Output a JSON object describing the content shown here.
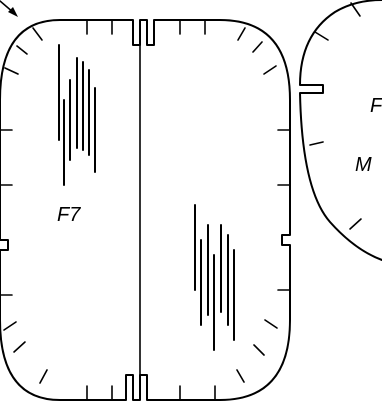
{
  "labels": {
    "part_a": "F7",
    "part_b_top": "F",
    "part_b_bottom": "M"
  },
  "colors": {
    "ink": "#000000",
    "background": "#ffffff"
  }
}
